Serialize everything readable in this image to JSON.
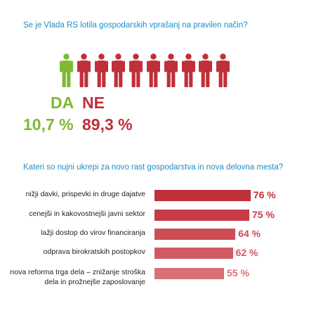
{
  "question1": "Se je Vlada RS lotila gospodarskih vprašanj na pravilen način?",
  "poll": {
    "yes_label": "DA",
    "no_label": "NE",
    "yes_value": "10,7 %",
    "no_value": "89,3 %",
    "figures": {
      "total": 10,
      "yes_count": 1
    },
    "colors": {
      "yes": "#7dba31",
      "no": "#c0303a"
    }
  },
  "question2": "Kateri so nujni ukrepi za novo rast gospodarstva in nova delovna mesta?",
  "chart_data": {
    "type": "bar",
    "orientation": "horizontal",
    "title": "Kateri so nujni ukrepi za novo rast gospodarstva in nova delovna mesta?",
    "categories": [
      "nižji davki, prispevki in druge dajatve",
      "cenejši in kakovostnejši javni sektor",
      "lažji dostop do virov financiranja",
      "odprava birokratskih postopkov",
      "nova reforma trga dela – znižanje stroška\ndela in prožnejše zaposlovanje"
    ],
    "values": [
      76,
      75,
      64,
      62,
      55
    ],
    "value_labels": [
      "76 %",
      "75 %",
      "64 %",
      "62 %",
      "55 %"
    ],
    "unit": "%",
    "colors": [
      "#c0303a",
      "#c63c45",
      "#cd4d55",
      "#d15a62",
      "#d97075"
    ],
    "grid": false,
    "legend": "none"
  }
}
